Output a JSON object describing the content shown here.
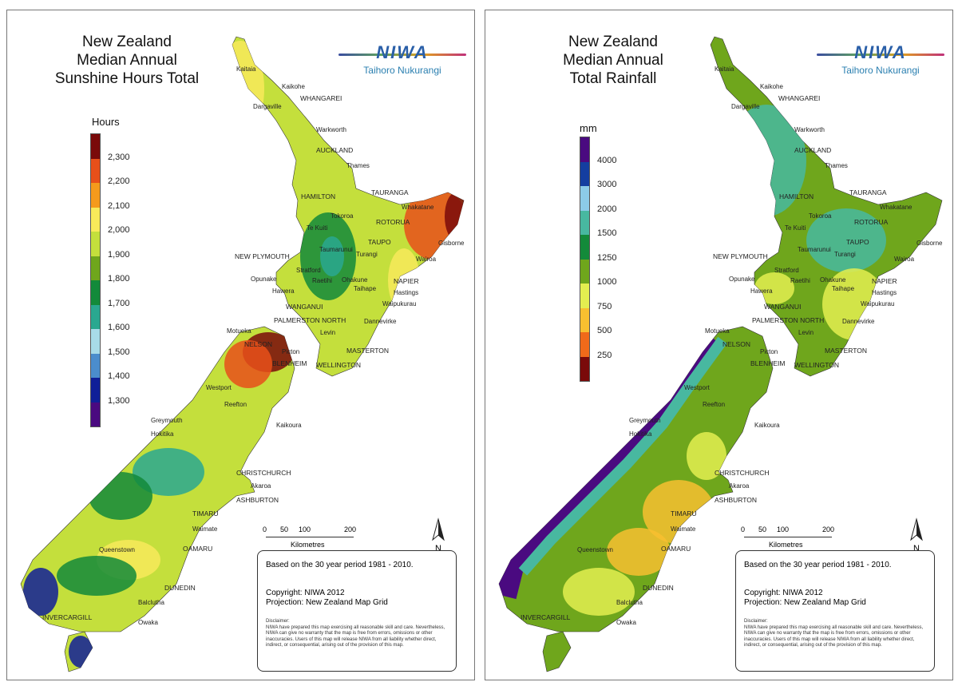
{
  "logo": {
    "brand": "NIWA",
    "tagline": "Taihoro Nukurangi"
  },
  "panels": [
    {
      "title_lines": [
        "New Zealand",
        "Median Annual",
        "Sunshine Hours Total"
      ],
      "legend": {
        "title": "Hours",
        "colors": [
          "#7a0a0a",
          "#e8501a",
          "#f59a1c",
          "#f8ea5a",
          "#c4df3c",
          "#6fa61c",
          "#138a3a",
          "#2aa890",
          "#a8dbe8",
          "#4b8dcc",
          "#101f98",
          "#4a0a80"
        ],
        "ticks": [
          "2,300",
          "2,200",
          "2,100",
          "2,000",
          "1,900",
          "1,800",
          "1,700",
          "1,600",
          "1,500",
          "1,400",
          "1,300"
        ]
      },
      "map_colors": {
        "base": "#c4df3c",
        "accent1": "#138a3a",
        "accent2": "#e8501a",
        "accent3": "#7a0a0a",
        "accent4": "#2aa890",
        "accent5": "#f8ea5a"
      }
    },
    {
      "title_lines": [
        "New Zealand",
        "Median Annual",
        "Total Rainfall"
      ],
      "legend": {
        "title": "mm",
        "colors": [
          "#4a0a80",
          "#143ea0",
          "#8ccbe8",
          "#48b8a0",
          "#138a3a",
          "#6fa61c",
          "#e4ee50",
          "#f8c030",
          "#f06a1a",
          "#7a0a0a"
        ],
        "ticks": [
          "4000",
          "3000",
          "2000",
          "1500",
          "1250",
          "1000",
          "750",
          "500",
          "250"
        ]
      },
      "map_colors": {
        "base": "#6fa61c",
        "accent1": "#48b8a0",
        "accent2": "#4a0a80",
        "accent3": "#f8c030",
        "accent4": "#e4ee50",
        "accent5": "#143ea0"
      }
    }
  ],
  "places": [
    "Kaitaia",
    "Kaikohe",
    "WHANGAREI",
    "Dargaville",
    "Warkworth",
    "AUCKLAND",
    "Thames",
    "HAMILTON",
    "TAURANGA",
    "Whakatane",
    "Tokoroa",
    "ROTORUA",
    "Te Kuiti",
    "TAUPO",
    "Gisborne",
    "NEW PLYMOUTH",
    "Taumarunui",
    "Turangi",
    "Wairoa",
    "Stratford",
    "Opunake",
    "Raetihi",
    "Ohakune",
    "NAPIER",
    "Taihape",
    "Hawera",
    "Hastings",
    "WANGANUI",
    "Waipukurau",
    "PALMERSTON NORTH",
    "Dannevirke",
    "Levin",
    "MASTERTON",
    "WELLINGTON",
    "Motueka",
    "NELSON",
    "Picton",
    "BLENHEIM",
    "Westport",
    "Reefton",
    "Greymouth",
    "Kaikoura",
    "Hokitika",
    "CHRISTCHURCH",
    "Akaroa",
    "ASHBURTON",
    "TIMARU",
    "Waimate",
    "Queenstown",
    "OAMARU",
    "DUNEDIN",
    "Balclutha",
    "INVERCARGILL",
    "Owaka"
  ],
  "scale": {
    "ticks": [
      "0",
      "50",
      "100",
      "200"
    ],
    "unit": "Kilometres"
  },
  "north_label": "N",
  "info": {
    "period": "Based on the 30 year period 1981 - 2010.",
    "copyright": "Copyright: NIWA 2012",
    "projection": "Projection: New Zealand Map Grid",
    "disclaimer_title": "Disclaimer:",
    "disclaimer": "NIWA have prepared this map exercising all reasonable skill and care. Nevertheless, NIWA can give no warranty that the map is free from errors, omissions or other inaccuracies. Users of this map will release NIWA from all liability whether direct, indirect, or consequential, arising out of the provision of this map."
  }
}
